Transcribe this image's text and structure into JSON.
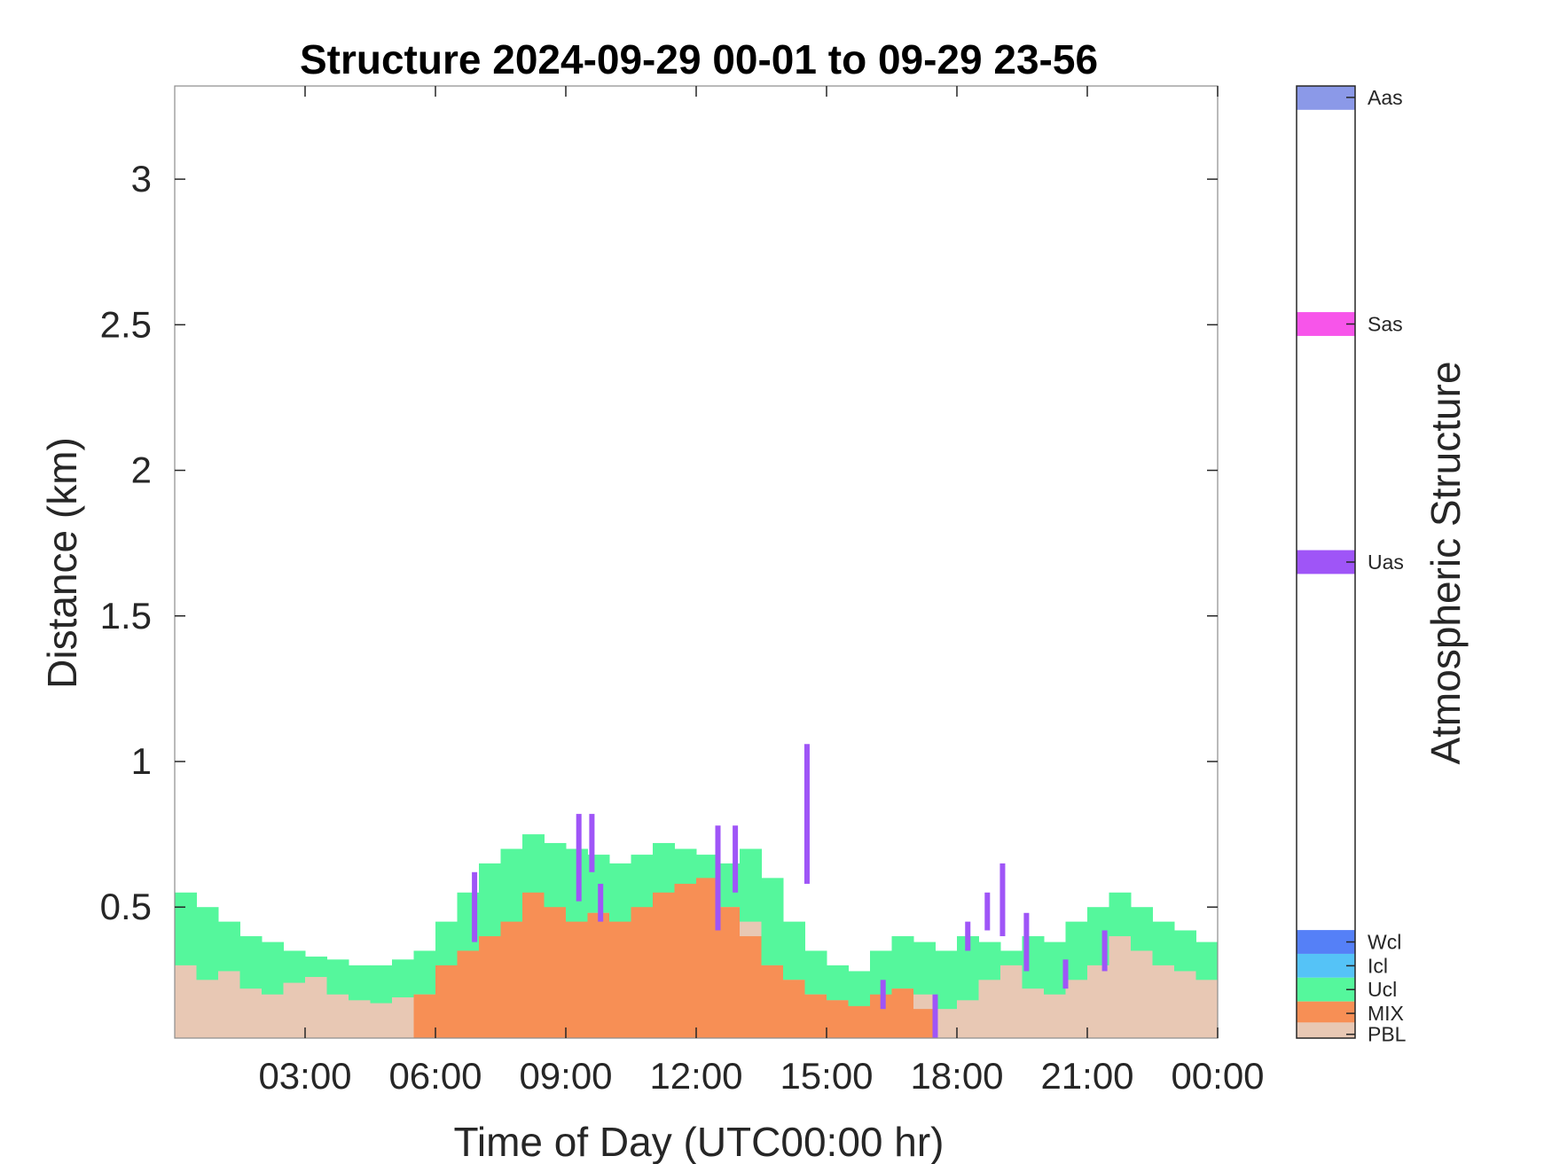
{
  "chart_data": {
    "type": "heatmap",
    "title": "Structure 2024-09-29 00-01 to 09-29 23-56",
    "xlabel": "Time of Day (UTC00:00 hr)",
    "ylabel": "Distance (km)",
    "colorbar_label": "Atmospheric Structure",
    "xlim": [
      0,
      24
    ],
    "ylim": [
      0.05,
      3.32
    ],
    "x_ticks": [
      3,
      6,
      9,
      12,
      15,
      18,
      21,
      24
    ],
    "x_tick_labels": [
      "03:00",
      "06:00",
      "09:00",
      "12:00",
      "15:00",
      "18:00",
      "21:00",
      "00:00"
    ],
    "y_ticks": [
      0.5,
      1,
      1.5,
      2,
      2.5,
      3
    ],
    "y_tick_labels": [
      "0.5",
      "1",
      "1.5",
      "2",
      "2.5",
      "3"
    ],
    "grid": false,
    "classes": [
      {
        "code": "PBL",
        "color": "#e8c8b4"
      },
      {
        "code": "MIX",
        "color": "#f78f55"
      },
      {
        "code": "Ucl",
        "color": "#55f79c"
      },
      {
        "code": "Icl",
        "color": "#55c3f7"
      },
      {
        "code": "Wcl",
        "color": "#5580f7"
      },
      {
        "code": "Uas",
        "color": "#9f55f7"
      },
      {
        "code": "Sas",
        "color": "#f755ea"
      },
      {
        "code": "Aas",
        "color": "#8b99e8"
      }
    ],
    "hours": [
      0.5,
      1.0,
      1.5,
      2.0,
      2.5,
      3.0,
      3.5,
      4.0,
      4.5,
      5.0,
      5.5,
      6.0,
      6.5,
      7.0,
      7.5,
      8.0,
      8.5,
      9.0,
      9.5,
      10.0,
      10.5,
      11.0,
      11.5,
      12.0,
      12.5,
      13.0,
      13.5,
      14.0,
      14.5,
      15.0,
      15.5,
      16.0,
      16.5,
      17.0,
      17.5,
      18.0,
      18.5,
      19.0,
      19.5,
      20.0,
      20.5,
      21.0,
      21.5,
      22.0,
      22.5,
      23.0,
      23.5,
      24.0
    ],
    "series": [
      {
        "name": "PBL",
        "values": [
          0.3,
          0.25,
          0.28,
          0.22,
          0.2,
          0.24,
          0.26,
          0.2,
          0.18,
          0.17,
          0.19,
          0.2,
          0.25,
          0.35,
          0.3,
          0.4,
          0.5,
          0.45,
          0.4,
          0.48,
          0.42,
          0.45,
          0.5,
          0.52,
          0.55,
          0.5,
          0.45,
          0.3,
          0.25,
          0.2,
          0.18,
          0.15,
          0.18,
          0.22,
          0.2,
          0.15,
          0.18,
          0.25,
          0.3,
          0.22,
          0.2,
          0.25,
          0.3,
          0.4,
          0.35,
          0.3,
          0.28,
          0.25
        ]
      },
      {
        "name": "MIX",
        "values": [
          0,
          0,
          0,
          0,
          0,
          0,
          0,
          0,
          0,
          0,
          0,
          0.2,
          0.3,
          0.35,
          0.4,
          0.45,
          0.55,
          0.5,
          0.45,
          0.48,
          0.45,
          0.5,
          0.55,
          0.58,
          0.6,
          0.5,
          0.4,
          0.3,
          0.25,
          0.2,
          0.18,
          0.16,
          0.2,
          0.22,
          0.15,
          0,
          0,
          0,
          0,
          0,
          0,
          0,
          0,
          0,
          0,
          0,
          0,
          0
        ]
      },
      {
        "name": "Ucl",
        "values": [
          0.55,
          0.5,
          0.45,
          0.4,
          0.38,
          0.35,
          0.33,
          0.32,
          0.3,
          0.3,
          0.32,
          0.35,
          0.45,
          0.55,
          0.65,
          0.7,
          0.75,
          0.72,
          0.7,
          0.68,
          0.65,
          0.68,
          0.72,
          0.7,
          0.68,
          0.65,
          0.7,
          0.6,
          0.45,
          0.35,
          0.3,
          0.28,
          0.35,
          0.4,
          0.38,
          0.35,
          0.4,
          0.38,
          0.35,
          0.4,
          0.38,
          0.45,
          0.5,
          0.55,
          0.5,
          0.45,
          0.42,
          0.38
        ]
      }
    ],
    "aerosol_layers": [
      {
        "class": "Uas",
        "hour": 6.9,
        "range": [
          0.38,
          0.62
        ]
      },
      {
        "class": "Uas",
        "hour": 9.3,
        "range": [
          0.52,
          0.82
        ]
      },
      {
        "class": "Uas",
        "hour": 9.6,
        "range": [
          0.62,
          0.82
        ]
      },
      {
        "class": "Uas",
        "hour": 9.8,
        "range": [
          0.45,
          0.58
        ]
      },
      {
        "class": "Uas",
        "hour": 12.5,
        "range": [
          0.42,
          0.78
        ]
      },
      {
        "class": "Uas",
        "hour": 12.9,
        "range": [
          0.55,
          0.78
        ]
      },
      {
        "class": "Uas",
        "hour": 14.55,
        "range": [
          0.58,
          1.06
        ]
      },
      {
        "class": "Uas",
        "hour": 17.5,
        "range": [
          0.05,
          0.2
        ]
      },
      {
        "class": "Uas",
        "hour": 18.25,
        "range": [
          0.35,
          0.45
        ]
      },
      {
        "class": "Uas",
        "hour": 18.7,
        "range": [
          0.42,
          0.55
        ]
      },
      {
        "class": "Uas",
        "hour": 19.05,
        "range": [
          0.4,
          0.65
        ]
      },
      {
        "class": "Uas",
        "hour": 19.6,
        "range": [
          0.28,
          0.48
        ]
      },
      {
        "class": "Uas",
        "hour": 20.5,
        "range": [
          0.22,
          0.32
        ]
      },
      {
        "class": "Uas",
        "hour": 21.4,
        "range": [
          0.28,
          0.42
        ]
      },
      {
        "class": "Uas",
        "hour": 16.3,
        "range": [
          0.15,
          0.25
        ]
      }
    ]
  },
  "colorbar": {
    "ticks": [
      {
        "label": "Aas",
        "class": "Aas"
      },
      {
        "label": "Sas",
        "class": "Sas"
      },
      {
        "label": "Uas",
        "class": "Uas"
      },
      {
        "label": "Wcl",
        "class": "Wcl"
      },
      {
        "label": "Icl",
        "class": "Icl"
      },
      {
        "label": "Ucl",
        "class": "Ucl"
      },
      {
        "label": "MIX",
        "class": "MIX"
      },
      {
        "label": "PBL",
        "class": "PBL"
      }
    ]
  }
}
